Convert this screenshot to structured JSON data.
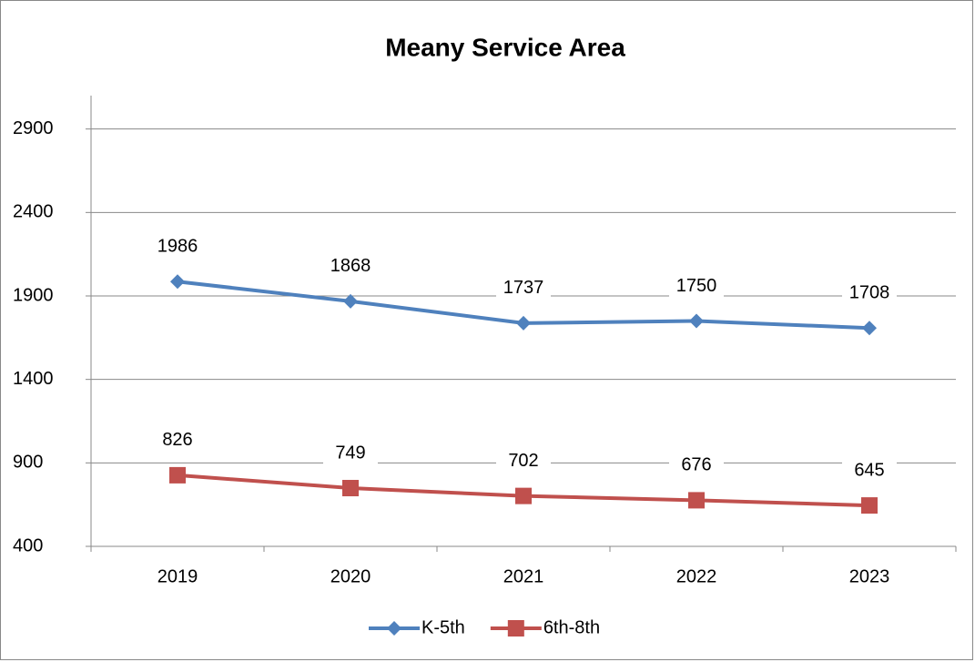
{
  "chart_data": {
    "type": "line",
    "title": "Meany Service Area",
    "categories": [
      "2019",
      "2020",
      "2021",
      "2022",
      "2023"
    ],
    "series": [
      {
        "name": "K-5th",
        "color": "#4f81bd",
        "marker": "diamond",
        "values": [
          1986,
          1868,
          1737,
          1750,
          1708
        ]
      },
      {
        "name": "6th-8th",
        "color": "#c0504d",
        "marker": "square",
        "values": [
          826,
          749,
          702,
          676,
          645
        ]
      }
    ],
    "ylim": [
      400,
      3100
    ],
    "yticks": [
      400,
      900,
      1400,
      1900,
      2400,
      2900
    ],
    "grid": true,
    "legend": "bottom"
  }
}
